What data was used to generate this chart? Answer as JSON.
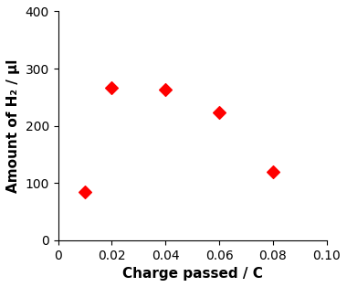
{
  "x": [
    0.01,
    0.02,
    0.04,
    0.06,
    0.08
  ],
  "y": [
    85,
    267,
    263,
    224,
    120
  ],
  "marker": "D",
  "marker_color": "#ff0000",
  "marker_size": 7,
  "xlabel": "Charge passed / C",
  "ylabel": "Amount of H₂ / μl",
  "xlim": [
    0,
    0.1
  ],
  "ylim": [
    0,
    400
  ],
  "xticks": [
    0,
    0.02,
    0.04,
    0.06,
    0.08,
    0.1
  ],
  "yticks": [
    0,
    100,
    200,
    300,
    400
  ],
  "xlabel_fontsize": 11,
  "ylabel_fontsize": 11,
  "tick_fontsize": 10,
  "background_color": "#ffffff"
}
